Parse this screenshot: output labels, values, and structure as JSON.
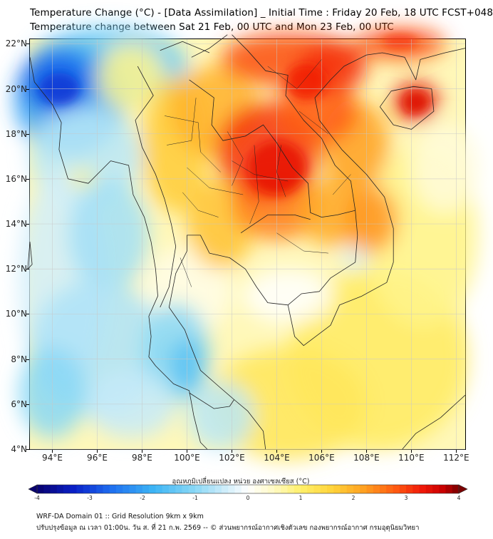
{
  "header": {
    "title_line1": "Temperature Change (°C) - [Data Assimilation] _ Initial Time : Friday 20 Feb, 18 UTC FCST+048",
    "title_line2": "Temperature change between Sat 21 Feb, 00 UTC and Mon 23 Feb, 00 UTC"
  },
  "map": {
    "lat_labels": [
      "22°N",
      "20°N",
      "18°N",
      "16°N",
      "14°N",
      "12°N",
      "10°N",
      "8°N",
      "6°N",
      "4°N"
    ],
    "lon_labels": [
      "94°E",
      "96°E",
      "98°E",
      "100°E",
      "102°E",
      "104°E",
      "106°E",
      "108°E",
      "110°E",
      "112°E"
    ],
    "lat_values": [
      22,
      20,
      18,
      16,
      14,
      12,
      10,
      8,
      6,
      4
    ],
    "lon_values": [
      94,
      96,
      98,
      100,
      102,
      104,
      106,
      108,
      110,
      112
    ],
    "extent": {
      "lon_min": 93,
      "lon_max": 112.4,
      "lat_min": 4,
      "lat_max": 22.2
    },
    "field_hotspots": [
      {
        "lon": 104.2,
        "lat": 16.5,
        "value": 3.3
      },
      {
        "lon": 103.5,
        "lat": 18.5,
        "value": 3.0
      },
      {
        "lon": 105.5,
        "lat": 20.5,
        "value": 3.2
      },
      {
        "lon": 110.2,
        "lat": 19.3,
        "value": 3.4
      },
      {
        "lon": 109.5,
        "lat": 22.0,
        "value": 3.0
      },
      {
        "lon": 94.5,
        "lat": 20.0,
        "value": -2.8
      },
      {
        "lon": 96.5,
        "lat": 21.5,
        "value": -1.8
      },
      {
        "lon": 97.0,
        "lat": 13.5,
        "value": -0.8
      },
      {
        "lon": 100.0,
        "lat": 8.0,
        "value": -1.3
      },
      {
        "lon": 94.0,
        "lat": 7.0,
        "value": -0.9
      },
      {
        "lon": 101.0,
        "lat": 5.5,
        "value": -0.6
      }
    ]
  },
  "colorbar": {
    "title": "อุณหภูมิเปลี่ยนแปลง หน่วย องศาเซลเซียส (°C)",
    "min": -4,
    "max": 4,
    "tick_labels": [
      "-4",
      "-3",
      "-2",
      "-1",
      "0",
      "1",
      "2",
      "3",
      "4"
    ],
    "tick_values": [
      -4,
      -3,
      -2,
      -1,
      0,
      1,
      2,
      3,
      4
    ],
    "stops": [
      {
        "v": -4,
        "c": "#08006e"
      },
      {
        "v": -3.3,
        "c": "#0a20c8"
      },
      {
        "v": -2.6,
        "c": "#1e6ef0"
      },
      {
        "v": -1.8,
        "c": "#3cb4f5"
      },
      {
        "v": -1.0,
        "c": "#8ad8f5"
      },
      {
        "v": -0.4,
        "c": "#d2eefa"
      },
      {
        "v": 0,
        "c": "#ffffff"
      },
      {
        "v": 0.5,
        "c": "#fff9c2"
      },
      {
        "v": 1.0,
        "c": "#fff06a"
      },
      {
        "v": 1.6,
        "c": "#ffd33a"
      },
      {
        "v": 2.2,
        "c": "#ffa020"
      },
      {
        "v": 2.8,
        "c": "#ff5a10"
      },
      {
        "v": 3.3,
        "c": "#f01808"
      },
      {
        "v": 3.7,
        "c": "#c80000"
      },
      {
        "v": 4,
        "c": "#7a0000"
      }
    ]
  },
  "footer": {
    "line1": "WRF-DA Domain 01 :: Grid Resolution 9km x 9km",
    "line2": "ปรับปรุงข้อมูล ณ เวลา 01:00น. วัน ส. ที่ 21 ก.พ. 2569 -- © ส่วนพยากรณ์อากาศเชิงตัวเลข กองพยากรณ์อากาศ กรมอุตุนิยมวิทยา"
  }
}
